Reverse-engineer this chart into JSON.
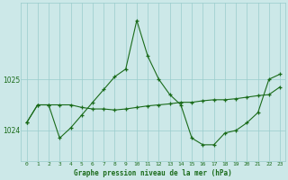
{
  "title": "Graphe pression niveau de la mer (hPa)",
  "background_color": "#cce8e8",
  "plot_bg_color": "#cce8e8",
  "line_color": "#1a6b1a",
  "grid_color": "#99cccc",
  "xlabel_color": "#1a6b1a",
  "x_ticks": [
    0,
    1,
    2,
    3,
    4,
    5,
    6,
    7,
    8,
    9,
    10,
    11,
    12,
    13,
    14,
    15,
    16,
    17,
    18,
    19,
    20,
    21,
    22,
    23
  ],
  "ylim": [
    1023.4,
    1026.5
  ],
  "yticks": [
    1024,
    1025
  ],
  "series1_x": [
    0,
    1,
    2,
    3,
    4,
    5,
    6,
    7,
    8,
    9,
    10,
    11,
    12,
    13,
    14,
    15,
    16,
    17,
    18,
    19,
    20,
    21,
    22,
    23
  ],
  "series1_y": [
    1024.15,
    1024.5,
    1024.5,
    1024.5,
    1024.5,
    1024.45,
    1024.42,
    1024.42,
    1024.4,
    1024.42,
    1024.45,
    1024.48,
    1024.5,
    1024.52,
    1024.55,
    1024.55,
    1024.58,
    1024.6,
    1024.6,
    1024.62,
    1024.65,
    1024.68,
    1024.7,
    1024.85
  ],
  "series2_x": [
    0,
    1,
    2,
    3,
    4,
    5,
    6,
    7,
    8,
    9,
    10,
    11,
    12,
    13,
    14,
    15,
    16,
    17,
    18,
    19,
    20,
    21,
    22,
    23
  ],
  "series2_y": [
    1024.15,
    1024.5,
    1024.5,
    1023.85,
    1024.05,
    1024.3,
    1024.55,
    1024.8,
    1025.05,
    1025.2,
    1026.15,
    1025.45,
    1025.0,
    1024.7,
    1024.5,
    1023.85,
    1023.72,
    1023.72,
    1023.95,
    1024.0,
    1024.15,
    1024.35,
    1025.0,
    1025.1
  ]
}
